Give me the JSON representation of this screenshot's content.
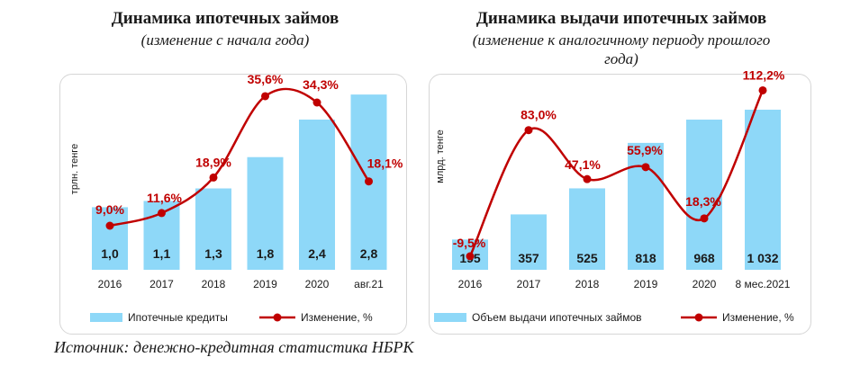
{
  "left": {
    "title": "Динамика ипотечных займов",
    "subtitle": "(изменение с начала года)"
  },
  "right": {
    "title": "Динамика выдачи ипотечных займов",
    "subtitle_line1": "(изменение к аналогичному периоду прошлого",
    "subtitle_line2": "года)"
  },
  "source": "Источник: денежно-кредитная статистика НБРК",
  "colors": {
    "bar": "#8ED8F8",
    "line": "#C00000",
    "text": "#1a1a1a"
  },
  "chart_data": [
    {
      "type": "bar",
      "title": "Динамика ипотечных займов",
      "subtitle": "(изменение с начала года)",
      "ylabel": "трлн. тенге",
      "categories": [
        "2016",
        "2017",
        "2018",
        "2019",
        "2020",
        "авг.21"
      ],
      "series": [
        {
          "name": "Ипотечные кредиты",
          "type": "bar",
          "values": [
            1.0,
            1.1,
            1.3,
            1.8,
            2.4,
            2.8
          ],
          "labels": [
            "1,0",
            "1,1",
            "1,3",
            "1,8",
            "2,4",
            "2,8"
          ]
        },
        {
          "name": "Изменение, %",
          "type": "line",
          "values": [
            9.0,
            11.6,
            18.9,
            35.6,
            34.3,
            18.1
          ],
          "labels": [
            "9,0%",
            "11,6%",
            "18,9%",
            "35,6%",
            "34,3%",
            "18,1%"
          ]
        }
      ],
      "grid": false,
      "legend": "bottom"
    },
    {
      "type": "bar",
      "title": "Динамика выдачи ипотечных займов",
      "subtitle": "(изменение к аналогичному периоду прошлого года)",
      "ylabel": "млрд. тенге",
      "categories": [
        "2016",
        "2017",
        "2018",
        "2019",
        "2020",
        "8 мес.2021"
      ],
      "series": [
        {
          "name": "Объем выдачи ипотечных займов",
          "type": "bar",
          "values": [
            195,
            357,
            525,
            818,
            968,
            1032
          ],
          "labels": [
            "195",
            "357",
            "525",
            "818",
            "968",
            "1 032"
          ]
        },
        {
          "name": "Изменение, %",
          "type": "line",
          "values": [
            -9.5,
            83.0,
            47.1,
            55.9,
            18.3,
            112.2
          ],
          "labels": [
            "-9,5%",
            "83,0%",
            "47,1%",
            "55,9%",
            "18,3%",
            "112,2%"
          ]
        }
      ],
      "grid": false,
      "legend": "bottom"
    }
  ]
}
